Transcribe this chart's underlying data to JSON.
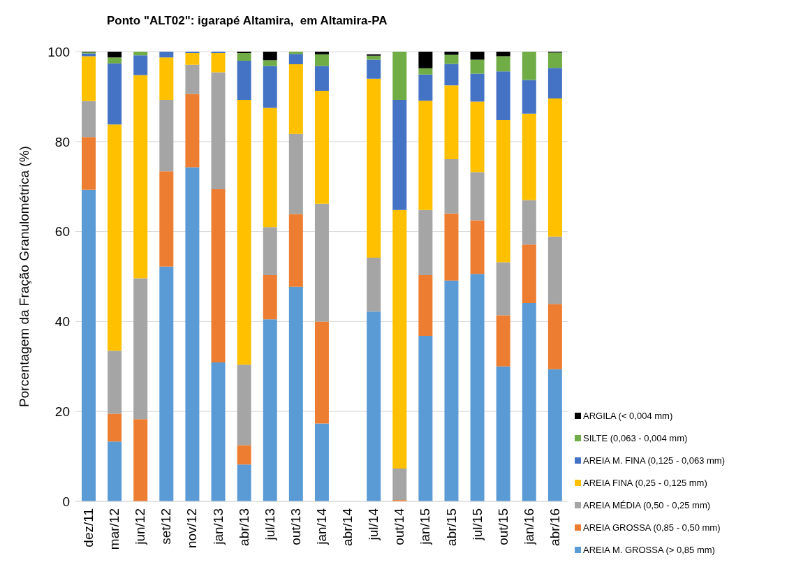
{
  "chart_data": {
    "type": "bar",
    "stacked": true,
    "title": "Ponto \"ALT02\": igarapé Altamira,  em Altamira-PA",
    "ylabel": "Porcentagem da Fração Granulométrica (%)",
    "categories": [
      "dez/11",
      "mar/12",
      "jun/12",
      "set/12",
      "nov/12",
      "jan/13",
      "abr/13",
      "jul/13",
      "out/13",
      "jan/14",
      "abr/14",
      "jul/14",
      "out/14",
      "jan/15",
      "abr/15",
      "jul/15",
      "out/15",
      "jan/16",
      "abr/16"
    ],
    "series": [
      {
        "name": "AREIA M. GROSSA (> 0,85 mm)",
        "color": "#5b9bd5",
        "values": [
          69.3,
          13.3,
          0,
          52.2,
          74.3,
          30.9,
          8.2,
          40.5,
          47.7,
          17.3,
          null,
          42.2,
          0,
          36.8,
          49.1,
          50.6,
          30,
          44.1,
          29.4
        ]
      },
      {
        "name": "AREIA GROSSA (0,85 - 0,50 mm)",
        "color": "#ed7d31",
        "values": [
          11.7,
          6.2,
          18.3,
          21.2,
          16.3,
          38.5,
          4.3,
          9.8,
          16.2,
          22.7,
          null,
          0,
          0.3,
          13.5,
          14.9,
          11.9,
          11.4,
          13,
          14.5
        ]
      },
      {
        "name": "AREIA MÉDIA (0,50 - 0,25 mm)",
        "color": "#a5a5a5",
        "values": [
          8,
          14,
          31.3,
          15.9,
          6.5,
          26,
          17.9,
          10.7,
          17.8,
          26.2,
          null,
          12,
          7,
          14.5,
          12.1,
          10.7,
          11.8,
          9.9,
          15
        ]
      },
      {
        "name": "AREIA FINA (0,25 - 0,125 mm)",
        "color": "#ffc000",
        "values": [
          10,
          50.3,
          45.2,
          9.4,
          2.6,
          4.3,
          58.9,
          26.5,
          15.5,
          25.1,
          null,
          39.8,
          57.5,
          24.3,
          16.4,
          15.7,
          31.6,
          19.2,
          30.7
        ]
      },
      {
        "name": "AREIA M. FINA (0,125 - 0,063 mm)",
        "color": "#4472c4",
        "values": [
          0.6,
          13.6,
          4.4,
          1.3,
          0.3,
          0.3,
          8.7,
          9.3,
          2.3,
          5.5,
          null,
          4.2,
          24.5,
          5.8,
          4.8,
          6.2,
          10.8,
          7.5,
          6.8
        ]
      },
      {
        "name": "SILTE (0,063 -  0,004 mm)",
        "color": "#70ad47",
        "values": [
          0.3,
          1.3,
          0.8,
          0,
          0,
          0,
          1.7,
          1.3,
          0.5,
          2.6,
          null,
          0.9,
          10.7,
          1.4,
          2,
          3.1,
          3.4,
          6.3,
          3.4
        ]
      },
      {
        "name": "ARGILA (< 0,004 mm)",
        "color": "#000000",
        "values": [
          0.1,
          1.3,
          0,
          0,
          0,
          0,
          0.3,
          1.9,
          0,
          0.6,
          null,
          0.3,
          0,
          3.7,
          0.7,
          1.8,
          1,
          0,
          0.2
        ]
      }
    ],
    "ylim": [
      0,
      100
    ],
    "yticks": [
      0,
      20,
      40,
      60,
      80,
      100
    ],
    "grid": "y",
    "legend": "bottom right"
  }
}
